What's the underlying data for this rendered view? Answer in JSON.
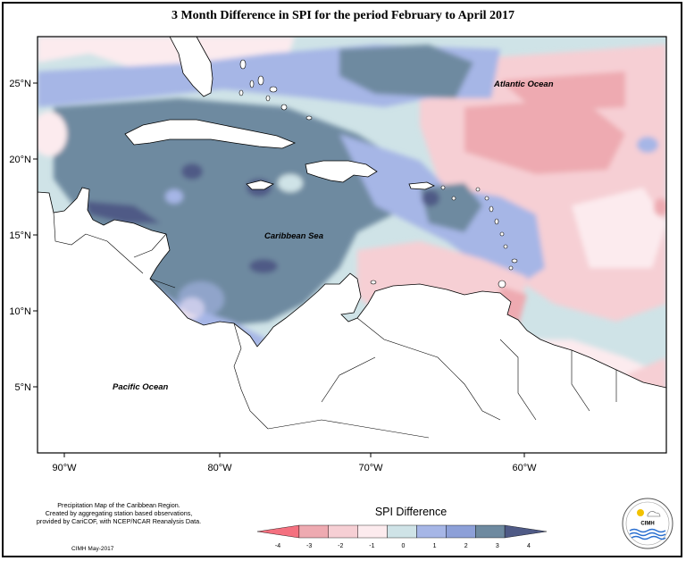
{
  "title": "3 Month Difference in SPI for the period February to April 2017",
  "axes": {
    "longitude_ticks": [
      "90°W",
      "80°W",
      "70°W",
      "60°W"
    ],
    "latitude_ticks": [
      "25°N",
      "20°N",
      "15°N",
      "10°N",
      "5°N"
    ]
  },
  "map_labels": {
    "atlantic": "Atlantic Ocean",
    "caribbean": "Caribbean Sea",
    "pacific": "Pacific Ocean"
  },
  "legend": {
    "title": "SPI Difference",
    "ticks": [
      "-4",
      "-3",
      "-2",
      "-1",
      "0",
      "1",
      "2",
      "3",
      "4"
    ],
    "colors": [
      "#f4707f",
      "#eeaab1",
      "#f6cfd4",
      "#fcebee",
      "#cfe3e7",
      "#a6b6e6",
      "#8da0d8",
      "#6e8aa0",
      "#4f5a86"
    ]
  },
  "credits": {
    "line1": "Precipitation Map of the Caribbean Region.",
    "line2": "Created by aggregating station based observations,",
    "line3": "provided by CariCOF, with NCEP/NCAR Reanalysis Data.",
    "date": "CIMH May-2017"
  },
  "logo": {
    "text": "CIMH"
  }
}
